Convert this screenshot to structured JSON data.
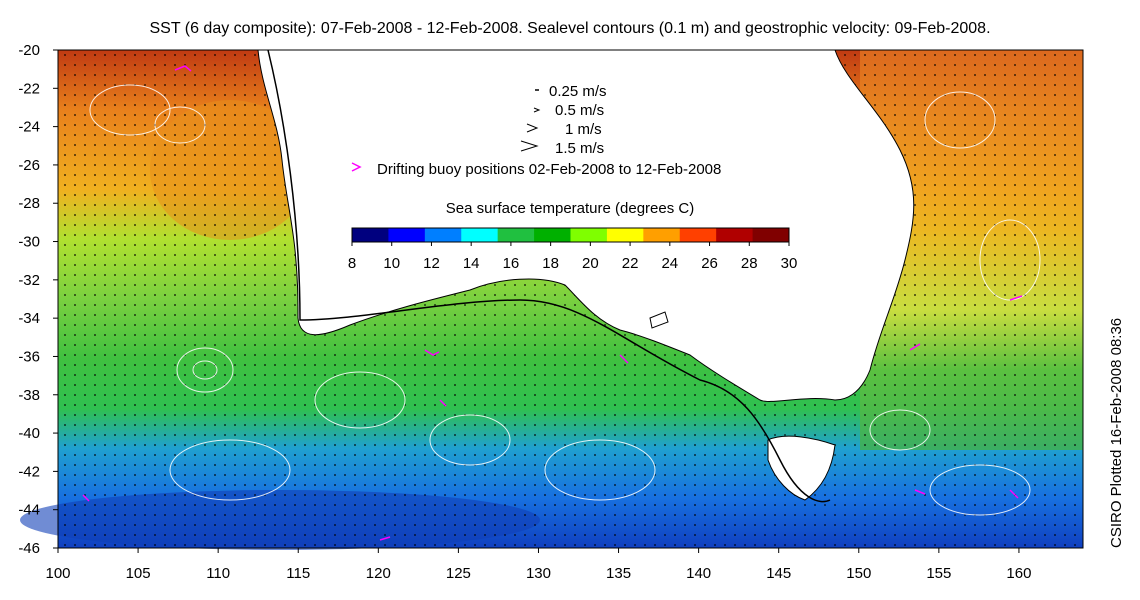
{
  "title": "SST (6 day composite): 07-Feb-2008 - 12-Feb-2008. Sealevel contours (0.1 m) and geostrophic velocity: 09-Feb-2008.",
  "credit": "CSIRO Plotted 16-Feb-2008 08:36",
  "map": {
    "lon_range": [
      100,
      164
    ],
    "lat_range": [
      -46,
      -20
    ],
    "x_ticks": [
      "100",
      "105",
      "110",
      "115",
      "120",
      "125",
      "130",
      "135",
      "140",
      "145",
      "150",
      "155",
      "160"
    ],
    "y_ticks": [
      "-20",
      "-22",
      "-24",
      "-26",
      "-28",
      "-30",
      "-32",
      "-34",
      "-36",
      "-38",
      "-40",
      "-42",
      "-44",
      "-46"
    ],
    "land_color": "#ffffff",
    "contour_color": "#ffffff"
  },
  "legend": {
    "velocity": [
      {
        "label": "0.25 m/s"
      },
      {
        "label": "0.5 m/s"
      },
      {
        "label": "1 m/s"
      },
      {
        "label": "1.5 m/s"
      }
    ],
    "buoy_label": "Drifting buoy positions 02-Feb-2008 to 12-Feb-2008",
    "buoy_color": "#ff00ff",
    "colorbar_title": "Sea surface temperature (degrees C)",
    "colorbar_ticks": [
      "8",
      "10",
      "12",
      "14",
      "16",
      "18",
      "20",
      "22",
      "24",
      "26",
      "28",
      "30"
    ],
    "colorbar_colors": [
      "#00007f",
      "#0000ff",
      "#007fff",
      "#00ffff",
      "#20c040",
      "#00b000",
      "#7fff00",
      "#ffff00",
      "#ff9f00",
      "#ff4000",
      "#b00000",
      "#800000"
    ]
  }
}
